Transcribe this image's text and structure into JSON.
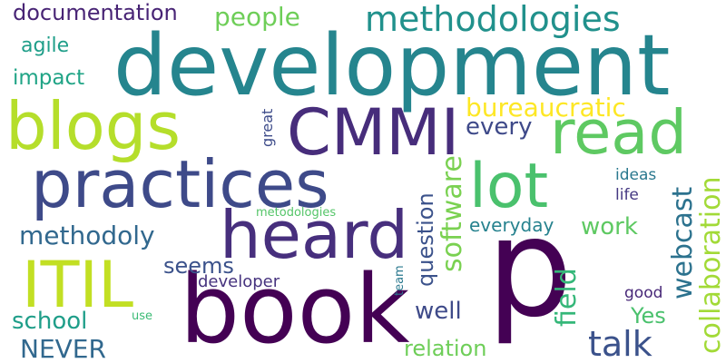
{
  "words": {
    "development": {
      "text": "development",
      "color": "#25858e"
    },
    "book": {
      "text": "book",
      "color": "#440154"
    },
    "p": {
      "text": "p",
      "color": "#440154"
    },
    "practices": {
      "text": "practices",
      "color": "#3e4a89"
    },
    "heard": {
      "text": "heard",
      "color": "#472f7d"
    },
    "blogs": {
      "text": "blogs",
      "color": "#b5de2b"
    },
    "read": {
      "text": "read",
      "color": "#5ec962"
    },
    "cmmi": {
      "text": "CMMI",
      "color": "#472d7b"
    },
    "lot": {
      "text": "lot",
      "color": "#4ac16d"
    },
    "itil": {
      "text": "ITIL",
      "color": "#c2df23"
    },
    "methodologies": {
      "text": "methodologies",
      "color": "#21918c"
    },
    "talk": {
      "text": "talk",
      "color": "#3b528b"
    },
    "collaboration": {
      "text": "collaboration",
      "color": "#a2da37"
    },
    "bureaucratic": {
      "text": "bureaucratic",
      "color": "#fde725"
    },
    "software": {
      "text": "software",
      "color": "#7ad151"
    },
    "methodoly": {
      "text": "methodoly",
      "color": "#31688e"
    },
    "webcast": {
      "text": "webcast",
      "color": "#2c728e"
    },
    "documentation": {
      "text": "documentation",
      "color": "#482475"
    },
    "people": {
      "text": "people",
      "color": "#6ece58"
    },
    "question": {
      "text": "question",
      "color": "#3b528b"
    },
    "every": {
      "text": "every",
      "color": "#3e4989"
    },
    "field": {
      "text": "field",
      "color": "#35b779"
    },
    "school": {
      "text": "school",
      "color": "#1f9e89"
    },
    "never": {
      "text": "NEVER",
      "color": "#31688e"
    },
    "work": {
      "text": "work",
      "color": "#5ec962"
    },
    "seems": {
      "text": "seems",
      "color": "#3b528b"
    },
    "well": {
      "text": "well",
      "color": "#3e4a89"
    },
    "relation": {
      "text": "relation",
      "color": "#6ece58"
    },
    "agile": {
      "text": "agile",
      "color": "#1f9e89"
    },
    "impact": {
      "text": "impact",
      "color": "#20a486"
    },
    "yes": {
      "text": "Yes",
      "color": "#4ac16d"
    },
    "everyday": {
      "text": "everyday",
      "color": "#26828e"
    },
    "developer": {
      "text": "developer",
      "color": "#46337e"
    },
    "great": {
      "text": "great",
      "color": "#3e4c8a"
    },
    "ideas": {
      "text": "ideas",
      "color": "#2a788e"
    },
    "life": {
      "text": "life",
      "color": "#453882"
    },
    "good": {
      "text": "good",
      "color": "#482878"
    },
    "metodologies": {
      "text": "metodologies",
      "color": "#54c568"
    },
    "team": {
      "text": "team",
      "color": "#2a788e"
    },
    "use": {
      "text": "use",
      "color": "#3bbb75"
    }
  }
}
